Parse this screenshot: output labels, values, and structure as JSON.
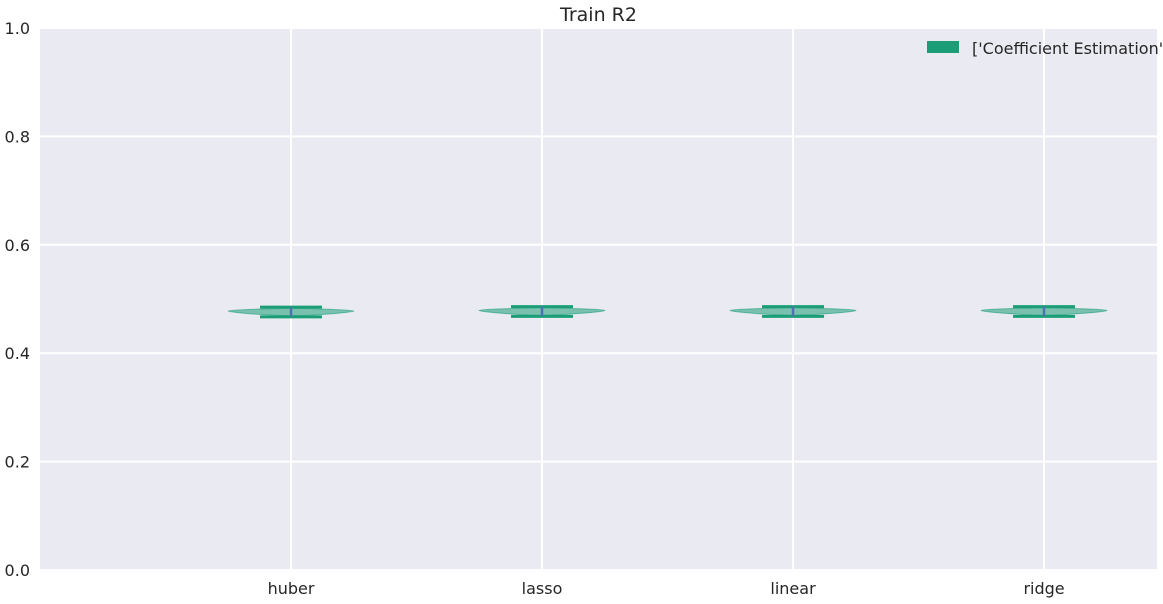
{
  "chart_data": {
    "type": "violin",
    "title": "Train R2",
    "xlabel": "",
    "ylabel": "",
    "categories": [
      "huber",
      "lasso",
      "linear",
      "ridge"
    ],
    "category_x_positions": [
      1,
      2,
      3,
      4
    ],
    "xlim": [
      0,
      4.45
    ],
    "ylim": [
      0.0,
      1.0
    ],
    "yticks": [
      0.0,
      0.2,
      0.4,
      0.6,
      0.8,
      1.0
    ],
    "ytick_labels": [
      "0.0",
      "0.2",
      "0.4",
      "0.6",
      "0.8",
      "1.0"
    ],
    "grid": true,
    "legend": {
      "position": "top-right",
      "entries": [
        "['Coefficient Estimation']"
      ]
    },
    "series": [
      {
        "name": "['Coefficient Estimation']",
        "color": "#1b9e77",
        "violins": [
          {
            "category": "huber",
            "min": 0.467,
            "max": 0.485,
            "median": 0.477
          },
          {
            "category": "lasso",
            "min": 0.468,
            "max": 0.486,
            "median": 0.478
          },
          {
            "category": "linear",
            "min": 0.468,
            "max": 0.486,
            "median": 0.478
          },
          {
            "category": "ridge",
            "min": 0.468,
            "max": 0.486,
            "median": 0.478
          }
        ]
      }
    ],
    "colors": {
      "background": "#eaeaf2",
      "grid": "#ffffff",
      "series": "#1b9e77",
      "median": "#4c72b0"
    }
  }
}
